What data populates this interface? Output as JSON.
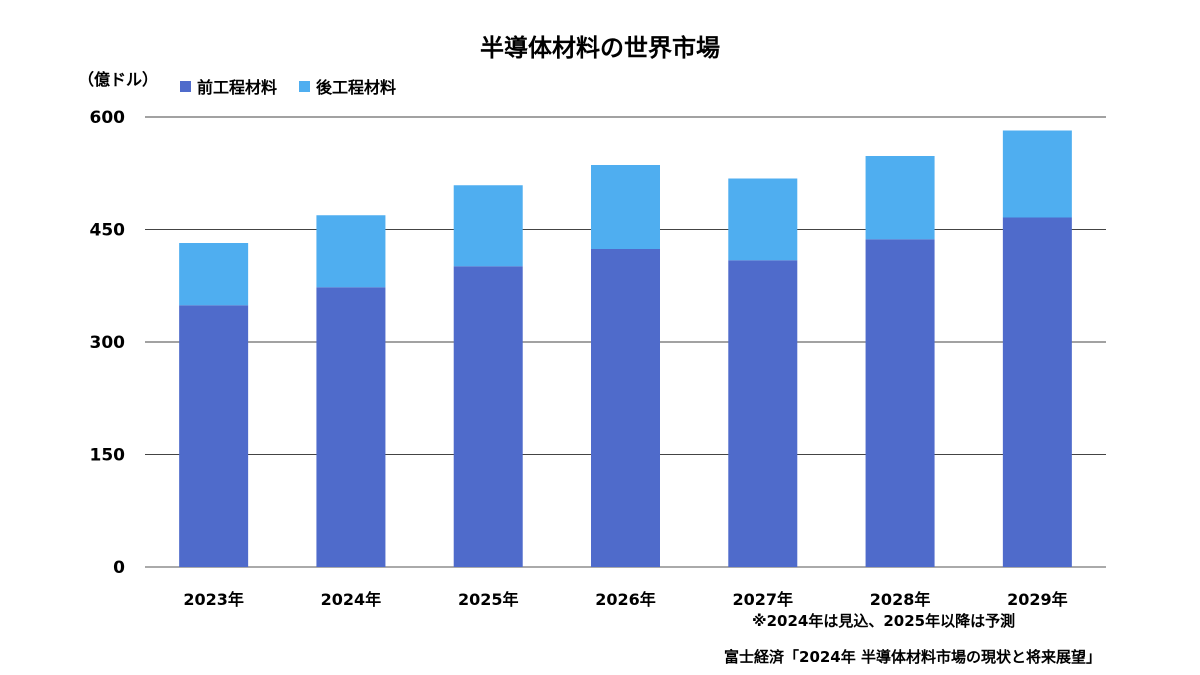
{
  "chart_data": {
    "type": "bar",
    "stacked": true,
    "title": "半導体材料の世界市場",
    "ylabel": "（億ドル）",
    "ylim": [
      0,
      600
    ],
    "yticks": [
      "0",
      "150",
      "300",
      "450",
      "600"
    ],
    "categories": [
      "2023年",
      "2024年",
      "2025年",
      "2026年",
      "2027年",
      "2028年",
      "2029年"
    ],
    "series": [
      {
        "name": "前工程材料",
        "color": "#4F6BCB",
        "values": [
          349,
          373,
          401,
          424,
          409,
          437,
          466
        ]
      },
      {
        "name": "後工程材料",
        "color": "#4FAEF0",
        "values": [
          83,
          96,
          108,
          112,
          109,
          111,
          116
        ]
      }
    ],
    "grid": true,
    "legend_position": "top-left"
  },
  "note": "※2024年は見込、2025年以降は予測",
  "source": "富士経済「2024年 半導体材料市場の現状と将来展望」"
}
